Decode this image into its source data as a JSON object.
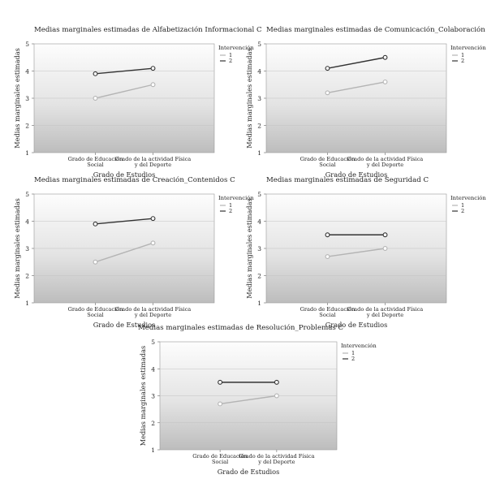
{
  "chart_data": [
    {
      "type": "line",
      "title": "Medias marginales estimadas de Alfabetización Informacional C",
      "xlabel": "Grado de Estudios",
      "ylabel": "Medias marginales estimadas",
      "ylim": [
        1,
        5
      ],
      "yticks": [
        "1",
        "2",
        "3",
        "4",
        "5"
      ],
      "categories": [
        "Grado de Educación Social",
        "Grado de la actividad Física y del Deporte"
      ],
      "category_lines": [
        [
          "Grado de Educación",
          "Social"
        ],
        [
          "Grado de la actividad Física",
          "y del Deporte"
        ]
      ],
      "legend_title": "Intervención",
      "series": [
        {
          "name": "1",
          "values": [
            3.0,
            3.5
          ],
          "color": "#b4b4b4"
        },
        {
          "name": "2",
          "values": [
            3.9,
            4.1
          ],
          "color": "#333333"
        }
      ]
    },
    {
      "type": "line",
      "title": "Medias marginales estimadas de Comunicación_Colaboración C",
      "xlabel": "Grado de Estudios",
      "ylabel": "Medias marginales estimadas",
      "ylim": [
        1,
        5
      ],
      "yticks": [
        "1",
        "2",
        "3",
        "4",
        "5"
      ],
      "categories": [
        "Grado de Educación Social",
        "Grado de la actividad Física y del Deporte"
      ],
      "category_lines": [
        [
          "Grado de Educación",
          "Social"
        ],
        [
          "Grado de la actividad Física",
          "y del Deporte"
        ]
      ],
      "legend_title": "Intervención",
      "series": [
        {
          "name": "1",
          "values": [
            3.2,
            3.6
          ],
          "color": "#b4b4b4"
        },
        {
          "name": "2",
          "values": [
            4.1,
            4.5
          ],
          "color": "#333333"
        }
      ]
    },
    {
      "type": "line",
      "title": "Medias marginales estimadas de Creación_Contenidos C",
      "xlabel": "Grado de Estudios",
      "ylabel": "Medias marginales estimadas",
      "ylim": [
        1,
        5
      ],
      "yticks": [
        "1",
        "2",
        "3",
        "4",
        "5"
      ],
      "categories": [
        "Grado de Educación Social",
        "Grado de la actividad Física y del Deporte"
      ],
      "category_lines": [
        [
          "Grado de Educación",
          "Social"
        ],
        [
          "Grado de la actividad Física",
          "y del Deporte"
        ]
      ],
      "legend_title": "Intervención",
      "series": [
        {
          "name": "1",
          "values": [
            2.5,
            3.2
          ],
          "color": "#b4b4b4"
        },
        {
          "name": "2",
          "values": [
            3.9,
            4.1
          ],
          "color": "#333333"
        }
      ]
    },
    {
      "type": "line",
      "title": "Medias marginales estimadas de Seguridad C",
      "xlabel": "Grado de Estudios",
      "ylabel": "Medias marginales estimadas",
      "ylim": [
        1,
        5
      ],
      "yticks": [
        "1",
        "2",
        "3",
        "4",
        "5"
      ],
      "categories": [
        "Grado de Educación Social",
        "Grado de la actividad Física y del Deporte"
      ],
      "category_lines": [
        [
          "Grado de Educación",
          "Social"
        ],
        [
          "Grado de la actividad Física",
          "y del Deporte"
        ]
      ],
      "legend_title": "Intervención",
      "series": [
        {
          "name": "1",
          "values": [
            2.7,
            3.0
          ],
          "color": "#b4b4b4"
        },
        {
          "name": "2",
          "values": [
            3.5,
            3.5
          ],
          "color": "#333333"
        }
      ]
    },
    {
      "type": "line",
      "title": "Medias marginales estimadas de Resolución_Problemas C",
      "xlabel": "Grado de Estudios",
      "ylabel": "Medias marginales estimadas",
      "ylim": [
        1,
        5
      ],
      "yticks": [
        "1",
        "2",
        "3",
        "4",
        "5"
      ],
      "categories": [
        "Grado de Educación Social",
        "Grado de la actividad Física y del Deporte"
      ],
      "category_lines": [
        [
          "Grado de Educación",
          "Social"
        ],
        [
          "Grado de la actividad Física",
          "y del Deporte"
        ]
      ],
      "legend_title": "Intervención",
      "series": [
        {
          "name": "1",
          "values": [
            2.7,
            3.0
          ],
          "color": "#b4b4b4"
        },
        {
          "name": "2",
          "values": [
            3.5,
            3.5
          ],
          "color": "#333333"
        }
      ]
    }
  ]
}
